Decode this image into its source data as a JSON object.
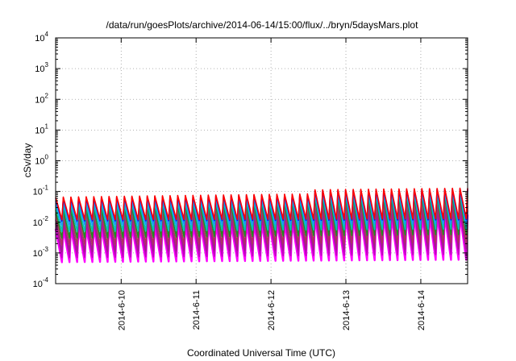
{
  "chart_data": {
    "type": "line",
    "title": "/data/run/goesPlots/archive/2014-06-14/15:00/flux/../bryn/5daysMars.plot",
    "xlabel": "Coordinated Universal Time (UTC)",
    "ylabel": "cSv/day",
    "yscale": "log",
    "ylim": [
      0.0001,
      10000
    ],
    "y_ticks": [
      {
        "base": "10",
        "exp": "-4",
        "value": 0.0001
      },
      {
        "base": "10",
        "exp": "-3",
        "value": 0.001
      },
      {
        "base": "10",
        "exp": "-2",
        "value": 0.01
      },
      {
        "base": "10",
        "exp": "-1",
        "value": 0.1
      },
      {
        "base": "10",
        "exp": "0",
        "value": 1
      },
      {
        "base": "10",
        "exp": "1",
        "value": 10
      },
      {
        "base": "10",
        "exp": "2",
        "value": 100
      },
      {
        "base": "10",
        "exp": "3",
        "value": 1000
      },
      {
        "base": "10",
        "exp": "4",
        "value": 10000
      }
    ],
    "xlim": [
      "2014-06-09 03:00",
      "2014-06-14 15:00"
    ],
    "x_ticks": [
      {
        "label": "2014-6-10",
        "value": "2014-06-10 00:00"
      },
      {
        "label": "2014-6-11",
        "value": "2014-06-11 00:00"
      },
      {
        "label": "2014-6-12",
        "value": "2014-06-12 00:00"
      },
      {
        "label": "2014-6-13",
        "value": "2014-06-13 00:00"
      },
      {
        "label": "2014-6-14",
        "value": "2014-06-14 00:00"
      }
    ],
    "grid": true,
    "oscillation_cycles": 54,
    "series": [
      {
        "color": "#ff00ff",
        "peak_first": 0.006,
        "peak_last": 0.013,
        "trough_first": 0.0005,
        "trough_last": 0.0006
      },
      {
        "color": "#c000c0",
        "peak_first": 0.009,
        "peak_last": 0.018,
        "trough_first": 0.0007,
        "trough_last": 0.0009
      },
      {
        "color": "#a0208c",
        "peak_first": 0.012,
        "peak_last": 0.025,
        "trough_first": 0.0011,
        "trough_last": 0.0014
      },
      {
        "color": "#b03060",
        "peak_first": 0.018,
        "peak_last": 0.04,
        "trough_first": 0.0018,
        "trough_last": 0.0022
      },
      {
        "color": "#228b22",
        "peak_first": 0.025,
        "peak_last": 0.055,
        "trough_first": 0.003,
        "trough_last": 0.004
      },
      {
        "color": "#00c0c0",
        "peak_first": 0.035,
        "peak_last": 0.065,
        "trough_first": 0.005,
        "trough_last": 0.006
      },
      {
        "color": "#1e90ff",
        "peak_first": 0.05,
        "peak_last": 0.08,
        "trough_first": 0.008,
        "trough_last": 0.009
      },
      {
        "color": "#0000ff",
        "peak_first": 0.06,
        "peak_last": 0.09,
        "trough_first": 0.011,
        "trough_last": 0.012
      },
      {
        "color": "#ff0000",
        "peak_first": 0.065,
        "peak_last": 0.095,
        "trough_first": 0.012,
        "trough_last": 0.013
      }
    ]
  }
}
